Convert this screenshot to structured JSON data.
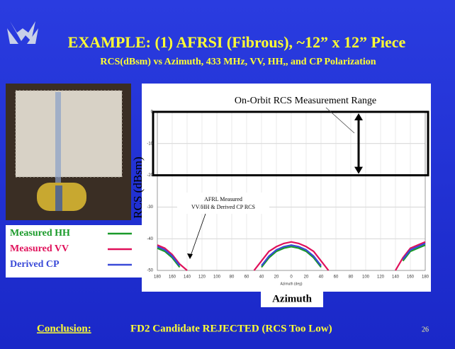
{
  "slide": {
    "title": "EXAMPLE: (1) AFRSI (Fibrous), ~12” x 12” Piece",
    "subtitle": "RCS(dBsm) vs Azimuth, 433 MHz, VV, HH,, and CP  Polarization",
    "conclusion_label": "Conclusion:",
    "conclusion_text": "FD2 Candidate REJECTED (RCS Too Low)",
    "page_number": "26"
  },
  "chart_data": {
    "type": "line",
    "y_label": "RCS  (dBsm)",
    "x_label": "Azimuth",
    "x_axis_title": "Azimuth (deg)",
    "band": {
      "label": "On-Orbit RCS Measurement Range",
      "ylim": [
        -20,
        0
      ]
    },
    "annotation": "AFRL Measured\nVV/HH & Derived CP RCS",
    "x": [
      -180,
      -170,
      -160,
      -150,
      -140,
      -130,
      -120,
      -110,
      -100,
      -90,
      -80,
      -70,
      -60,
      -50,
      -40,
      -30,
      -20,
      -10,
      0,
      10,
      20,
      30,
      40,
      50,
      60,
      70,
      80,
      90,
      100,
      110,
      120,
      130,
      140,
      150,
      160,
      170,
      180
    ],
    "series": [
      {
        "name": "Measured HH",
        "color": "#1a9a2a",
        "values": [
          -43,
          -44,
          -46,
          -49,
          null,
          null,
          null,
          null,
          null,
          null,
          null,
          null,
          null,
          null,
          -49,
          -46,
          -44,
          -43,
          -42.5,
          -43,
          -44,
          -46,
          -49,
          null,
          null,
          null,
          null,
          null,
          null,
          null,
          null,
          null,
          null,
          -47,
          -44,
          -43,
          -42
        ]
      },
      {
        "name": "Measured VV",
        "color": "#e0105a",
        "values": [
          -42,
          -43,
          -45,
          -48,
          -50,
          null,
          null,
          null,
          null,
          null,
          null,
          null,
          null,
          -50,
          -47,
          -44,
          -42.5,
          -41.5,
          -41,
          -41.5,
          -42.5,
          -44,
          -47,
          -50,
          null,
          null,
          null,
          null,
          null,
          null,
          null,
          null,
          -50,
          -46,
          -43,
          -42,
          -41
        ]
      },
      {
        "name": "Derived CP",
        "color": "#3a4ad8",
        "values": [
          -42.5,
          -43.5,
          -45.5,
          -48.5,
          null,
          null,
          null,
          null,
          null,
          null,
          null,
          null,
          null,
          null,
          -48.5,
          -45.5,
          -43.5,
          -42.5,
          -42,
          -42.5,
          -43.5,
          -45.5,
          -48.5,
          null,
          null,
          null,
          null,
          null,
          null,
          null,
          null,
          null,
          null,
          -46.5,
          -43.5,
          -42.5,
          -41.5
        ]
      }
    ],
    "xlim": [
      -180,
      180
    ],
    "xticks": [
      {
        "value": -180,
        "label": "180"
      },
      {
        "value": -160,
        "label": "160"
      },
      {
        "value": -140,
        "label": "140"
      },
      {
        "value": -120,
        "label": "120"
      },
      {
        "value": -100,
        "label": "100"
      },
      {
        "value": -80,
        "label": "80"
      },
      {
        "value": -60,
        "label": "60"
      },
      {
        "value": -40,
        "label": "40"
      },
      {
        "value": -20,
        "label": "20"
      },
      0,
      20,
      40,
      60,
      80,
      100,
      120,
      140,
      160,
      180
    ],
    "ylim": [
      -50,
      0
    ],
    "yticks": [
      0,
      -10,
      -20,
      -30,
      -40,
      -50
    ],
    "grid": true
  }
}
